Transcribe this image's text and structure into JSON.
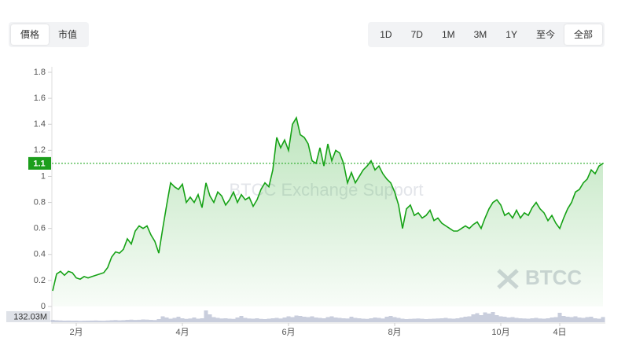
{
  "ui": {
    "metric_tabs": [
      {
        "label": "價格",
        "active": true
      },
      {
        "label": "市值",
        "active": false
      }
    ],
    "range_tabs": [
      {
        "label": "1D",
        "active": false
      },
      {
        "label": "7D",
        "active": false
      },
      {
        "label": "1M",
        "active": false
      },
      {
        "label": "3M",
        "active": false
      },
      {
        "label": "1Y",
        "active": false
      },
      {
        "label": "至今",
        "active": false
      },
      {
        "label": "全部",
        "active": true
      }
    ],
    "watermark": "BTCC Exchange Support",
    "logo": "BTCC"
  },
  "chart_data": {
    "type": "line",
    "categories": [
      null,
      null,
      null,
      null,
      null,
      null,
      "2月",
      null,
      null,
      null,
      null,
      null,
      null,
      null,
      null,
      null,
      null,
      null,
      null,
      null,
      null,
      null,
      null,
      null,
      null,
      null,
      null,
      null,
      null,
      null,
      null,
      null,
      null,
      "4月",
      null,
      null,
      null,
      null,
      null,
      null,
      null,
      null,
      null,
      null,
      null,
      null,
      null,
      null,
      null,
      null,
      null,
      null,
      null,
      null,
      null,
      null,
      null,
      null,
      null,
      null,
      "6月",
      null,
      null,
      null,
      null,
      null,
      null,
      null,
      null,
      null,
      null,
      null,
      null,
      null,
      null,
      null,
      null,
      null,
      null,
      null,
      null,
      null,
      null,
      null,
      null,
      null,
      null,
      "8月",
      null,
      null,
      null,
      null,
      null,
      null,
      null,
      null,
      null,
      null,
      null,
      null,
      null,
      null,
      null,
      null,
      null,
      null,
      null,
      null,
      null,
      null,
      null,
      null,
      null,
      null,
      "10月",
      null,
      null,
      null,
      null,
      null,
      null,
      null,
      null,
      null,
      null,
      null,
      null,
      null,
      null,
      "4日",
      null,
      null,
      null,
      null,
      null,
      null,
      null,
      null,
      null,
      null,
      null
    ],
    "series": [
      {
        "name": "價格",
        "color": "#16a216",
        "values": [
          0.12,
          0.25,
          0.27,
          0.24,
          0.27,
          0.26,
          0.22,
          0.21,
          0.23,
          0.22,
          0.23,
          0.24,
          0.25,
          0.26,
          0.3,
          0.38,
          0.42,
          0.41,
          0.44,
          0.52,
          0.48,
          0.58,
          0.62,
          0.6,
          0.62,
          0.55,
          0.5,
          0.41,
          0.6,
          0.78,
          0.95,
          0.92,
          0.9,
          0.94,
          0.8,
          0.84,
          0.8,
          0.86,
          0.76,
          0.95,
          0.85,
          0.8,
          0.88,
          0.85,
          0.78,
          0.82,
          0.88,
          0.8,
          0.86,
          0.82,
          0.84,
          0.77,
          0.82,
          0.9,
          0.95,
          0.92,
          1.05,
          1.3,
          1.22,
          1.28,
          1.2,
          1.4,
          1.45,
          1.32,
          1.3,
          1.25,
          1.12,
          1.1,
          1.22,
          1.08,
          1.25,
          1.12,
          1.2,
          1.18,
          1.1,
          0.95,
          1.03,
          0.95,
          1.0,
          1.05,
          1.08,
          1.12,
          1.05,
          1.08,
          1.02,
          0.98,
          0.95,
          0.88,
          0.78,
          0.6,
          0.75,
          0.78,
          0.7,
          0.72,
          0.68,
          0.7,
          0.74,
          0.66,
          0.68,
          0.64,
          0.62,
          0.6,
          0.58,
          0.58,
          0.6,
          0.62,
          0.6,
          0.63,
          0.65,
          0.6,
          0.68,
          0.75,
          0.8,
          0.82,
          0.78,
          0.7,
          0.72,
          0.68,
          0.74,
          0.68,
          0.72,
          0.7,
          0.76,
          0.8,
          0.75,
          0.72,
          0.66,
          0.7,
          0.64,
          0.6,
          0.68,
          0.75,
          0.8,
          0.88,
          0.9,
          0.95,
          0.98,
          1.05,
          1.02,
          1.08,
          1.1
        ]
      }
    ],
    "volume": {
      "color": "#c9cedd",
      "values": [
        60,
        50,
        45,
        40,
        42,
        38,
        40,
        35,
        38,
        40,
        42,
        45,
        40,
        38,
        44,
        50,
        55,
        48,
        52,
        60,
        65,
        58,
        62,
        70,
        66,
        60,
        55,
        80,
        150,
        120,
        90,
        110,
        140,
        100,
        85,
        95,
        120,
        90,
        100,
        300,
        200,
        130,
        110,
        95,
        100,
        90,
        85,
        120,
        160,
        110,
        95,
        90,
        100,
        85,
        80,
        90,
        100,
        110,
        95,
        120,
        150,
        130,
        170,
        160,
        140,
        130,
        150,
        120,
        110,
        100,
        130,
        150,
        120,
        110,
        100,
        95,
        140,
        110,
        100,
        90,
        85,
        100,
        120,
        110,
        95,
        140,
        160,
        130,
        110,
        90,
        80,
        85,
        90,
        95,
        88,
        80,
        85,
        90,
        95,
        100,
        110,
        95,
        90,
        100,
        120,
        140,
        150,
        200,
        230,
        180,
        250,
        220,
        260,
        180,
        150,
        140,
        120,
        130,
        110,
        100,
        95,
        90,
        100,
        110,
        95,
        90,
        100,
        120,
        130,
        240,
        160,
        140,
        130,
        150,
        120,
        110,
        130,
        140,
        100,
        90,
        132.03
      ],
      "current": {
        "value": 132.03,
        "label": "132.03M"
      }
    },
    "current_price": 1.1,
    "ylim": [
      0,
      1.8
    ],
    "yticks": [
      0,
      0.2,
      0.4,
      0.6,
      0.8,
      1,
      1.2,
      1.4,
      1.6,
      1.8
    ]
  }
}
